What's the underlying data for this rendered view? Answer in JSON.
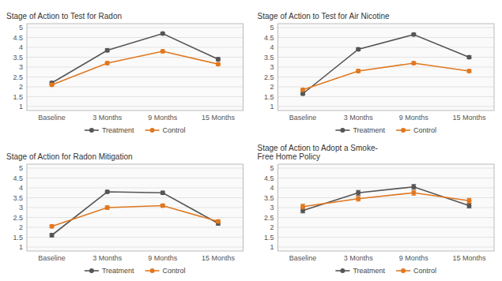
{
  "chart_data": [
    {
      "type": "line",
      "y_label": "Stage of Action to Test for Radon",
      "categories": [
        "Baseline",
        "3 Months",
        "9 Months",
        "15 Months"
      ],
      "series": [
        {
          "name": "Treatment",
          "color": "#555555",
          "marker": "circle",
          "values": [
            2.2,
            3.85,
            4.7,
            3.4
          ],
          "errors": [
            0.07,
            0.08,
            0.06,
            0.08
          ]
        },
        {
          "name": "Control",
          "color": "#e07820",
          "marker": "circle",
          "values": [
            2.1,
            3.2,
            3.8,
            3.15
          ],
          "errors": [
            0.07,
            0.08,
            0.07,
            0.07
          ]
        }
      ],
      "ylim": [
        0.8,
        5.2
      ],
      "yticks": [
        1,
        1.5,
        2,
        2.5,
        3,
        3.5,
        4,
        4.5,
        5
      ],
      "grid": true,
      "legend": "bottom"
    },
    {
      "type": "line",
      "y_label": "Stage of Action to Test for Air Nicotine",
      "categories": [
        "Baseline",
        "3 Months",
        "9 Months",
        "15 Months"
      ],
      "series": [
        {
          "name": "Treatment",
          "color": "#555555",
          "marker": "circle",
          "values": [
            1.65,
            3.9,
            4.65,
            3.5
          ],
          "errors": [
            0.07,
            0.08,
            0.07,
            0.08
          ]
        },
        {
          "name": "Control",
          "color": "#e07820",
          "marker": "circle",
          "values": [
            1.85,
            2.8,
            3.2,
            2.8
          ],
          "errors": [
            0.07,
            0.08,
            0.07,
            0.07
          ]
        }
      ],
      "ylim": [
        0.8,
        5.2
      ],
      "yticks": [
        1,
        1.5,
        2,
        2.5,
        3,
        3.5,
        4,
        4.5,
        5
      ],
      "grid": true,
      "legend": "bottom"
    },
    {
      "type": "line",
      "y_label": "Stage of Action for Radon Mitigation",
      "categories": [
        "Baseline",
        "3 Months",
        "9 Months",
        "15 Months"
      ],
      "series": [
        {
          "name": "Treatment",
          "color": "#555555",
          "marker": "circle",
          "values": [
            1.6,
            3.8,
            3.75,
            2.2
          ],
          "errors": [
            0.09,
            0.07,
            0.08,
            0.09
          ]
        },
        {
          "name": "Control",
          "color": "#e07820",
          "marker": "circle",
          "values": [
            2.05,
            3.0,
            3.1,
            2.3
          ],
          "errors": [
            0.08,
            0.09,
            0.08,
            0.08
          ]
        }
      ],
      "ylim": [
        0.8,
        5.2
      ],
      "yticks": [
        1,
        1.5,
        2,
        2.5,
        3,
        3.5,
        4,
        4.5,
        5
      ],
      "grid": true,
      "legend": "bottom"
    },
    {
      "type": "line",
      "y_label": "Stage of Action to Adopt a Smoke-\nFree Home Policy",
      "categories": [
        "Baseline",
        "3 Months",
        "9 Months",
        "15 Months"
      ],
      "series": [
        {
          "name": "Treatment",
          "color": "#555555",
          "marker": "circle",
          "values": [
            2.85,
            3.75,
            4.05,
            3.1
          ],
          "errors": [
            0.12,
            0.12,
            0.12,
            0.12
          ]
        },
        {
          "name": "Control",
          "color": "#e07820",
          "marker": "circle",
          "values": [
            3.05,
            3.45,
            3.75,
            3.35
          ],
          "errors": [
            0.12,
            0.12,
            0.12,
            0.12
          ]
        }
      ],
      "ylim": [
        0.8,
        5.2
      ],
      "yticks": [
        1,
        1.5,
        2,
        2.5,
        3,
        3.5,
        4,
        4.5,
        5
      ],
      "grid": true,
      "legend": "bottom"
    }
  ]
}
